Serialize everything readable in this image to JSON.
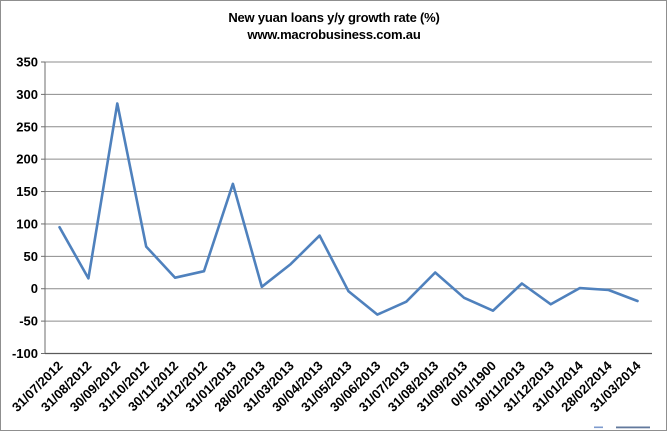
{
  "chart_data": {
    "type": "line",
    "title": "New yuan loans y/y growth rate (%)",
    "subtitle": "www.macrobusiness.com.au",
    "categories": [
      "31/07/2012",
      "31/08/2012",
      "30/09/2012",
      "31/10/2012",
      "30/11/2012",
      "31/12/2012",
      "31/01/2013",
      "28/02/2013",
      "31/03/2013",
      "30/04/2013",
      "31/05/2013",
      "30/06/2013",
      "31/07/2013",
      "31/08/2013",
      "31/09/2013",
      "0/01/1900",
      "30/11/2013",
      "31/12/2013",
      "31/01/2014",
      "28/02/2014",
      "31/03/2014"
    ],
    "series": [
      {
        "color": "#4F81BD",
        "values": [
          95,
          16,
          286,
          65,
          17,
          27,
          162,
          3,
          38,
          82,
          -4,
          -40,
          -20,
          25,
          -14,
          -34,
          8,
          -24,
          1,
          -2,
          -19
        ]
      }
    ],
    "ylim": [
      -100,
      350
    ],
    "yticks": [
      350,
      300,
      250,
      200,
      150,
      100,
      50,
      0,
      -50,
      -100
    ],
    "xlabel": "",
    "ylabel": "",
    "grid": "horizontal",
    "legend_position": "none",
    "gridline_color": "#8C8C8C",
    "axis_color": "#6E6E6E",
    "text_color": "#000000"
  }
}
